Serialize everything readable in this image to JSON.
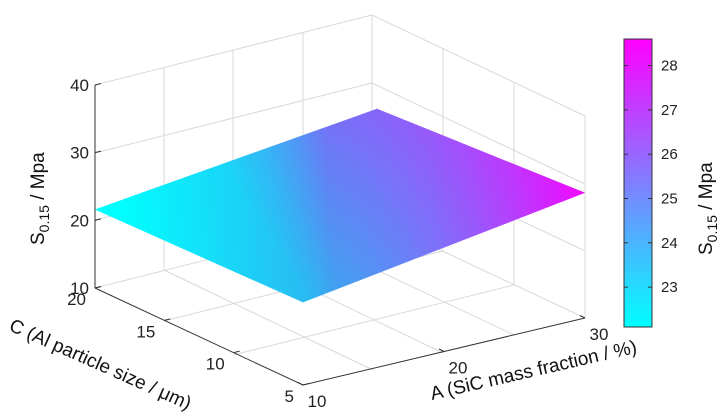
{
  "chart_data": {
    "type": "surface",
    "title": "",
    "x_axis": {
      "label": "A (SiC mass fraction / %)",
      "range": [
        10,
        30
      ],
      "ticks": [
        "10",
        "20",
        "30"
      ]
    },
    "y_axis": {
      "label": "C (Al particle size / μm)",
      "range": [
        5,
        20
      ],
      "ticks": [
        "5",
        "10",
        "15",
        "20"
      ]
    },
    "z_axis": {
      "label_main": "S",
      "label_sub": "0.15",
      "label_rest": " / Mpa",
      "range": [
        10,
        40
      ],
      "ticks": [
        "10",
        "20",
        "30",
        "40"
      ]
    },
    "surface": {
      "x": [
        10,
        30
      ],
      "y": [
        5,
        20
      ],
      "z": [
        [
          22.2,
          28.5
        ],
        [
          21.6,
          26.6
        ]
      ]
    },
    "colorbar": {
      "label_main": "S",
      "label_sub": "0.15",
      "label_rest": " / Mpa",
      "range": [
        22.1,
        28.6
      ],
      "ticks": [
        "23",
        "24",
        "25",
        "26",
        "27",
        "28"
      ],
      "colormap": [
        "#00ffff",
        "#ff00ff"
      ]
    },
    "grid": true
  }
}
